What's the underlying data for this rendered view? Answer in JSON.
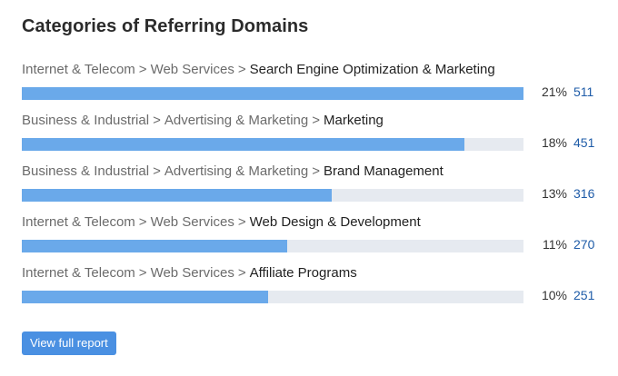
{
  "widget": {
    "title": "Categories of Referring Domains",
    "button_label": "View full report",
    "colors": {
      "bar": "#6aa9ea",
      "track": "#e6eaf0",
      "button": "#4a90e2",
      "count_link": "#1f5ca8"
    }
  },
  "categories": [
    {
      "path": [
        "Internet & Telecom",
        "Web Services"
      ],
      "name": "Search Engine Optimization & Marketing",
      "percent_label": "21%",
      "count": "511",
      "bar_fill": 1.0
    },
    {
      "path": [
        "Business & Industrial",
        "Advertising & Marketing"
      ],
      "name": "Marketing",
      "percent_label": "18%",
      "count": "451",
      "bar_fill": 0.8826
    },
    {
      "path": [
        "Business & Industrial",
        "Advertising & Marketing"
      ],
      "name": "Brand Management",
      "percent_label": "13%",
      "count": "316",
      "bar_fill": 0.6184
    },
    {
      "path": [
        "Internet & Telecom",
        "Web Services"
      ],
      "name": "Web Design & Development",
      "percent_label": "11%",
      "count": "270",
      "bar_fill": 0.5284
    },
    {
      "path": [
        "Internet & Telecom",
        "Web Services"
      ],
      "name": "Affiliate Programs",
      "percent_label": "10%",
      "count": "251",
      "bar_fill": 0.4912
    }
  ]
}
